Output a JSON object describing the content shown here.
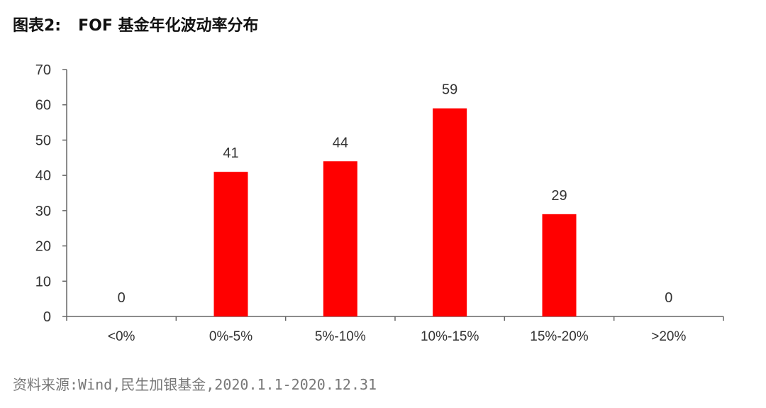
{
  "caption": {
    "figure_label": "图表2:",
    "title": "FOF 基金年化波动率分布"
  },
  "source_note": "资料来源:Wind,民生加银基金,2020.1.1-2020.12.31",
  "colors": {
    "bar": "#ff0000",
    "axis": "#666666",
    "text": "#333333"
  },
  "chart_data": {
    "type": "bar",
    "title": "FOF 基金年化波动率分布",
    "xlabel": "",
    "ylabel": "",
    "categories": [
      "<0%",
      "0%-5%",
      "5%-10%",
      "10%-15%",
      "15%-20%",
      ">20%"
    ],
    "values": [
      0,
      41,
      44,
      59,
      29,
      0
    ],
    "data_labels": [
      "0",
      "41",
      "44",
      "59",
      "29",
      "0"
    ],
    "ylim": [
      0,
      70
    ],
    "yticks": [
      0,
      10,
      20,
      30,
      40,
      50,
      60,
      70
    ],
    "grid": false,
    "legend": "none"
  }
}
